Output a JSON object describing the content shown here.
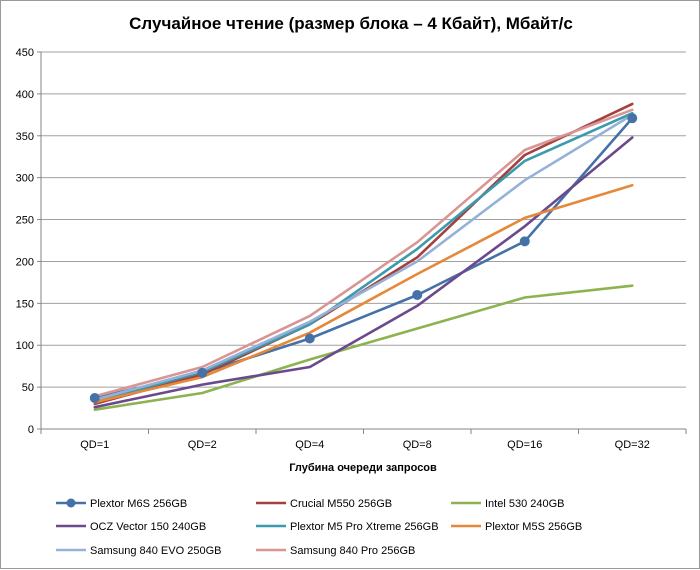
{
  "chart_data": {
    "type": "line",
    "title": "Случайное чтение (размер блока – 4 Кбайт), Мбайт/с",
    "xlabel": "Глубина очереди запросов",
    "ylabel": "",
    "categories": [
      "QD=1",
      "QD=2",
      "QD=4",
      "QD=8",
      "QD=16",
      "QD=32"
    ],
    "ylim": [
      0,
      450
    ],
    "yticks": [
      0,
      50,
      100,
      150,
      200,
      250,
      300,
      350,
      400,
      450
    ],
    "grid": true,
    "legend_position": "bottom",
    "series": [
      {
        "name": "Plextor M6S 256GB",
        "color": "#4472a8",
        "markers": true,
        "values": [
          37,
          67,
          108,
          160,
          224,
          371
        ]
      },
      {
        "name": "Crucial M550 256GB",
        "color": "#a4403d",
        "markers": false,
        "values": [
          30,
          65,
          125,
          205,
          327,
          388
        ]
      },
      {
        "name": "Intel 530 240GB",
        "color": "#8db350",
        "markers": false,
        "values": [
          23,
          43,
          83,
          120,
          157,
          171
        ]
      },
      {
        "name": "OCZ Vector 150 240GB",
        "color": "#6a4a8c",
        "markers": false,
        "values": [
          26,
          53,
          74,
          147,
          242,
          348
        ]
      },
      {
        "name": "Plextor M5 Pro Xtreme 256GB",
        "color": "#3b9aad",
        "markers": false,
        "values": [
          33,
          68,
          125,
          215,
          320,
          377
        ]
      },
      {
        "name": "Plextor M5S 256GB",
        "color": "#e6883a",
        "markers": false,
        "values": [
          32,
          62,
          115,
          185,
          252,
          291
        ]
      },
      {
        "name": "Samsung 840 EVO 250GB",
        "color": "#96b1d8",
        "markers": false,
        "values": [
          35,
          70,
          128,
          200,
          297,
          375
        ]
      },
      {
        "name": "Samsung 840 Pro 256GB",
        "color": "#d99593",
        "markers": false,
        "values": [
          39,
          74,
          135,
          223,
          333,
          381
        ]
      }
    ]
  }
}
